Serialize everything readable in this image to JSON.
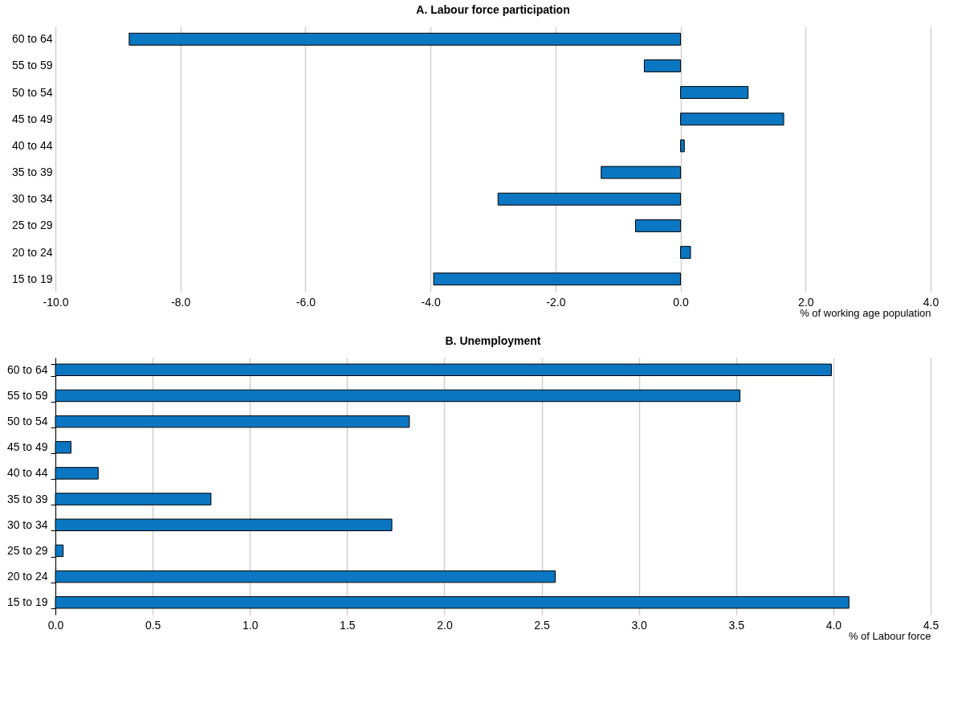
{
  "chart_data": [
    {
      "type": "bar",
      "orientation": "horizontal",
      "title": "A. Labour force participation",
      "xlabel": "% of working age population",
      "categories": [
        "60 to 64",
        "55 to 59",
        "50 to 54",
        "45 to 49",
        "40 to 44",
        "35 to 39",
        "30 to 34",
        "25 to 29",
        "20 to 24",
        "15 to 19"
      ],
      "values": [
        -8.82,
        -0.58,
        1.08,
        1.65,
        0.06,
        -1.27,
        -2.92,
        -0.72,
        0.16,
        -3.95
      ],
      "color": "#0b76c1",
      "xlim": [
        -10,
        4
      ],
      "xticks": [
        {
          "value": -10,
          "label": "-10.0"
        },
        {
          "value": -8,
          "label": "-8.0"
        },
        {
          "value": -6,
          "label": "-6.0"
        },
        {
          "value": -4,
          "label": "-4.0"
        },
        {
          "value": -2,
          "label": "-2.0"
        },
        {
          "value": 0,
          "label": "0.0"
        },
        {
          "value": 2,
          "label": "2.0"
        },
        {
          "value": 4,
          "label": "4.0"
        }
      ],
      "grid": "x"
    },
    {
      "type": "bar",
      "orientation": "horizontal",
      "title": "B. Unemployment",
      "xlabel": "% of Labour force",
      "categories": [
        "60 to 64",
        "55 to 59",
        "50 to 54",
        "45 to 49",
        "40 to 44",
        "35 to 39",
        "30 to 34",
        "25 to 29",
        "20 to 24",
        "15 to 19"
      ],
      "values": [
        3.99,
        3.52,
        1.82,
        0.08,
        0.22,
        0.8,
        1.73,
        0.04,
        2.57,
        4.08
      ],
      "color": "#0b76c1",
      "xlim": [
        0,
        4.5
      ],
      "xticks": [
        {
          "value": 0,
          "label": "0.0"
        },
        {
          "value": 0.5,
          "label": "0.5"
        },
        {
          "value": 1,
          "label": "1.0"
        },
        {
          "value": 1.5,
          "label": "1.5"
        },
        {
          "value": 2,
          "label": "2.0"
        },
        {
          "value": 2.5,
          "label": "2.5"
        },
        {
          "value": 3,
          "label": "3.0"
        },
        {
          "value": 3.5,
          "label": "3.5"
        },
        {
          "value": 4,
          "label": "4.0"
        },
        {
          "value": 4.5,
          "label": "4.5"
        }
      ],
      "grid": "x"
    }
  ]
}
